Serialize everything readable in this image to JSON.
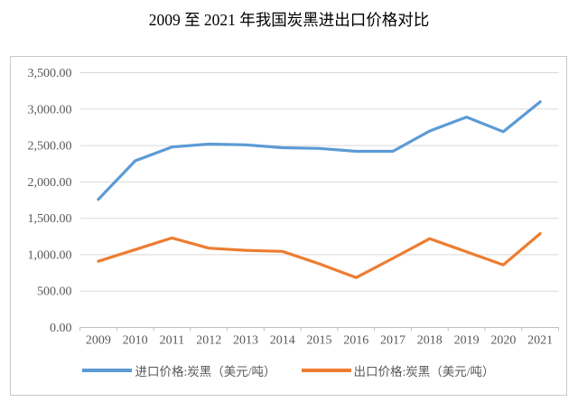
{
  "title": "2009 至 2021 年我国炭黑进出口价格对比",
  "chart_data": {
    "type": "line",
    "categories": [
      "2009",
      "2010",
      "2011",
      "2012",
      "2013",
      "2014",
      "2015",
      "2016",
      "2017",
      "2018",
      "2019",
      "2020",
      "2021"
    ],
    "series": [
      {
        "key": "import",
        "name": "进口价格:炭黑（美元/吨）",
        "color": "#5B9BD5",
        "values": [
          1760,
          2290,
          2480,
          2520,
          2510,
          2470,
          2460,
          2420,
          2420,
          2700,
          2890,
          2690,
          3100
        ]
      },
      {
        "key": "export",
        "name": "出口价格:炭黑（美元/吨）",
        "color": "#ED7D31",
        "values": [
          910,
          1070,
          1230,
          1090,
          1060,
          1045,
          875,
          685,
          950,
          1220,
          1040,
          860,
          1290
        ]
      }
    ],
    "title": "2009 至 2021 年我国炭黑进出口价格对比",
    "xlabel": "",
    "ylabel": "",
    "ylim": [
      0,
      3500
    ],
    "y_tick_step": 500,
    "y_tick_labels": [
      "0.00",
      "500.00",
      "1,000.00",
      "1,500.00",
      "2,000.00",
      "2,500.00",
      "3,000.00",
      "3,500.00"
    ],
    "grid": "horizontal",
    "legend_position": "bottom"
  },
  "colors": {
    "gridline": "#D9D9D9",
    "axis": "#BFBFBF",
    "tick_label_text": "#595959",
    "legend_text": "#595959",
    "frame_border": "#C9C9C9",
    "title_text": "#000000"
  }
}
